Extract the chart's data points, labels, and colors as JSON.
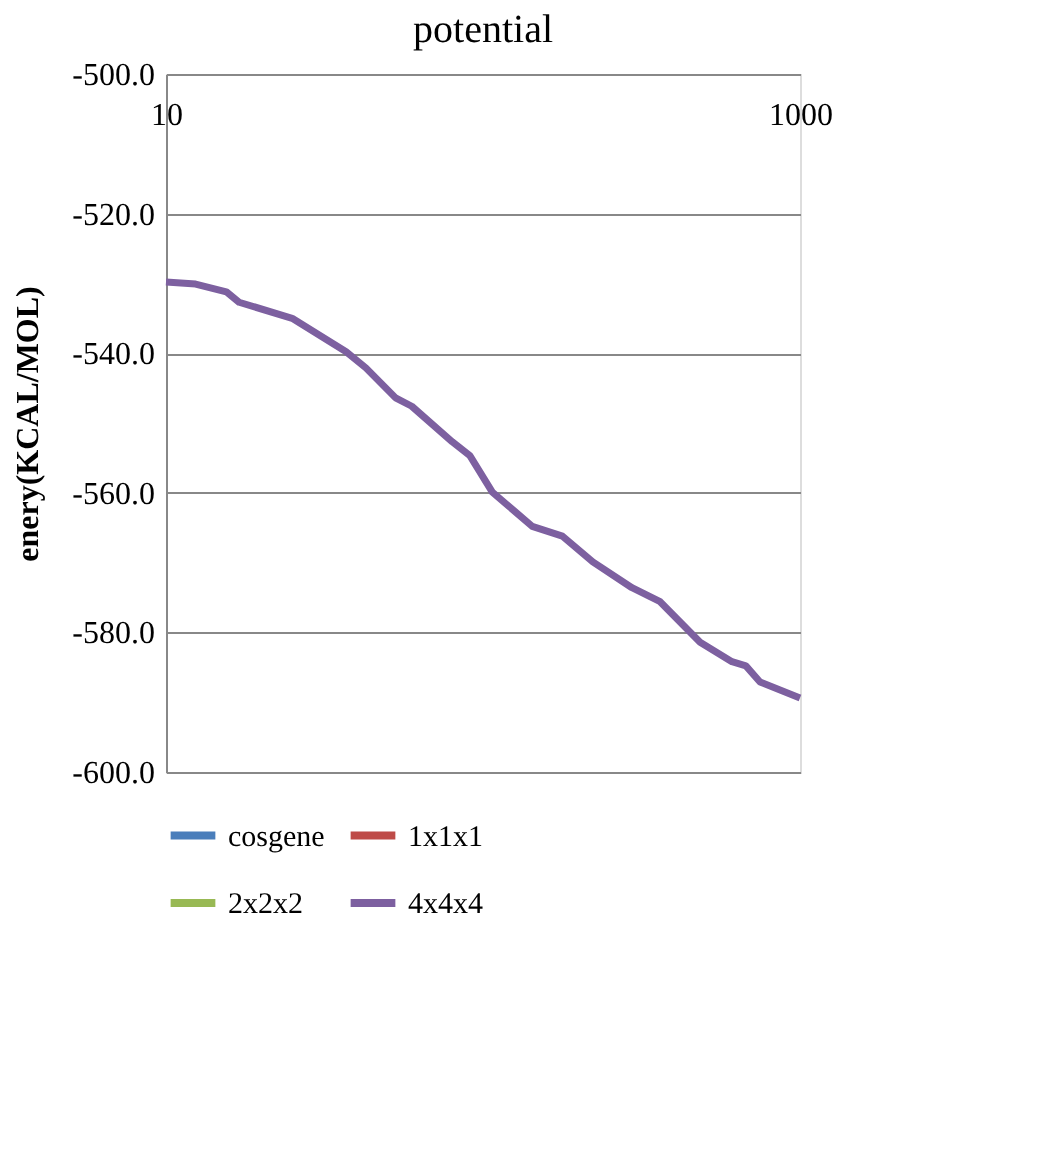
{
  "chart_data": {
    "type": "line",
    "title": "potential",
    "ylabel": "enery(KCAL/MOL)",
    "x": [
      10,
      12.4,
      15.5,
      17,
      25,
      37,
      42.7,
      53,
      59.6,
      80,
      91,
      107,
      143,
      178,
      222,
      295,
      362,
      484,
      610,
      675,
      748,
      1000
    ],
    "series": [
      {
        "name": "cosgene",
        "color": "#4a7ebb",
        "values": [
          null,
          null,
          null,
          null,
          null,
          null,
          null,
          null,
          null,
          null,
          null,
          null,
          null,
          null,
          null,
          null,
          null,
          null,
          null,
          null,
          null,
          null
        ]
      },
      {
        "name": "1x1x1",
        "color": "#be4b48",
        "values": [
          null,
          null,
          null,
          null,
          null,
          null,
          null,
          null,
          null,
          null,
          null,
          null,
          null,
          null,
          null,
          null,
          null,
          null,
          null,
          null,
          null,
          null
        ]
      },
      {
        "name": "2x2x2",
        "color": "#98b954",
        "values": [
          null,
          null,
          null,
          null,
          null,
          null,
          null,
          null,
          null,
          null,
          null,
          null,
          null,
          null,
          null,
          null,
          null,
          null,
          null,
          null,
          null,
          null
        ]
      },
      {
        "name": "4x4x4",
        "color": "#7d60a0",
        "values": [
          -529.8,
          -530.1,
          -531.2,
          -532.7,
          -535.0,
          -539.8,
          -542.1,
          -546.4,
          -547.6,
          -552.7,
          -554.7,
          -559.9,
          -564.8,
          -566.2,
          -569.9,
          -573.6,
          -575.6,
          -581.4,
          -584.2,
          -584.8,
          -587.1,
          -589.4
        ]
      }
    ],
    "log": "x",
    "xlim": [
      10,
      1000
    ],
    "xticks": [
      10,
      1000
    ],
    "ylim": [
      -600,
      -500
    ],
    "yticks": [
      {
        "value": -600,
        "label": "-600.0"
      },
      {
        "value": -580,
        "label": "-580.0"
      },
      {
        "value": -560,
        "label": "-560.0"
      },
      {
        "value": -540,
        "label": "-540.0"
      },
      {
        "value": -520,
        "label": "-520.0"
      },
      {
        "value": -500,
        "label": "-500.0"
      }
    ],
    "grid": "y",
    "legend": "bottom",
    "marker": "none",
    "line_style": "solid"
  }
}
